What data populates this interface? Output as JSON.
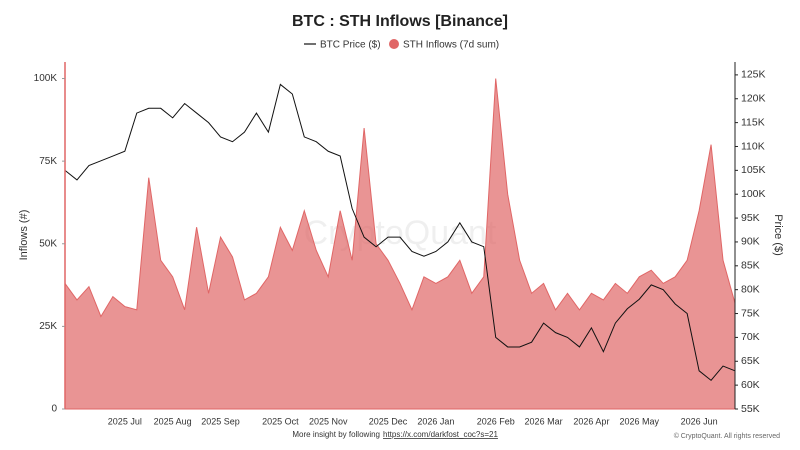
{
  "chart_data": {
    "type": "line",
    "title": "BTC : STH Inflows [Binance]",
    "y_label": "Inflows (#)",
    "y2_label": "Price ($)",
    "watermark": "CryptoQuant",
    "note": "More insight by following",
    "link": "https://x.com/darkfost_coc?s=21",
    "credit": "© CryptoQuant. All rights reserved",
    "categories": [
      null,
      null,
      null,
      null,
      null,
      "2025 Jul",
      null,
      null,
      null,
      "2025 Aug",
      null,
      null,
      null,
      "2025 Sep",
      null,
      null,
      null,
      null,
      "2025 Oct",
      null,
      null,
      null,
      "2025 Nov",
      null,
      null,
      null,
      null,
      "2025 Dec",
      null,
      null,
      null,
      "2026 Jan",
      null,
      null,
      null,
      null,
      "2026 Feb",
      null,
      null,
      null,
      "2026 Mar",
      null,
      null,
      null,
      "2026 Apr",
      null,
      null,
      null,
      "2026 May",
      null,
      null,
      null,
      null,
      "2026 Jun",
      null,
      null,
      null
    ],
    "series": [
      {
        "name": "STH Inflows (7d sum)",
        "type": "area",
        "color": "#e06666",
        "values": [
          38000,
          33000,
          37000,
          28000,
          34000,
          31000,
          30000,
          70000,
          45000,
          40000,
          30000,
          55000,
          35000,
          52000,
          46000,
          33000,
          35000,
          40000,
          55000,
          48000,
          60000,
          48000,
          40000,
          60000,
          45000,
          85000,
          50000,
          45000,
          38000,
          30000,
          40000,
          38000,
          40000,
          45000,
          35000,
          40000,
          100000,
          65000,
          45000,
          35000,
          38000,
          30000,
          35000,
          30000,
          35000,
          33000,
          38000,
          35000,
          40000,
          42000,
          38000,
          40000,
          45000,
          60000,
          80000,
          45000,
          32000
        ]
      },
      {
        "name": "BTC Price ($)",
        "type": "line",
        "axis": "y2",
        "color": "#111111",
        "values": [
          105000,
          103000,
          106000,
          107000,
          108000,
          109000,
          117000,
          118000,
          118000,
          116000,
          119000,
          117000,
          115000,
          112000,
          111000,
          113000,
          117000,
          113000,
          123000,
          121000,
          112000,
          111000,
          109000,
          108000,
          97000,
          91000,
          89000,
          91000,
          91000,
          88000,
          87000,
          88000,
          90000,
          94000,
          90000,
          89000,
          70000,
          68000,
          68000,
          69000,
          73000,
          71000,
          70000,
          68000,
          72000,
          67000,
          73000,
          76000,
          78000,
          81000,
          80000,
          77000,
          75000,
          63000,
          61000,
          64000,
          63000
        ]
      }
    ],
    "ylim": [
      0,
      105000
    ],
    "yticks": [
      0,
      {
        "value": 25000,
        "label": "25K"
      },
      {
        "value": 50000,
        "label": "50K"
      },
      {
        "value": 75000,
        "label": "75K"
      },
      {
        "value": 100000,
        "label": "100K"
      }
    ],
    "y2lim": [
      55000,
      127700
    ],
    "y2ticks": [
      {
        "value": 55000,
        "label": "55K"
      },
      {
        "value": 60000,
        "label": "60K"
      },
      {
        "value": 65000,
        "label": "65K"
      },
      {
        "value": 70000,
        "label": "70K"
      },
      {
        "value": 75000,
        "label": "75K"
      },
      {
        "value": 80000,
        "label": "80K"
      },
      {
        "value": 85000,
        "label": "85K"
      },
      {
        "value": 90000,
        "label": "90K"
      },
      {
        "value": 95000,
        "label": "95K"
      },
      {
        "value": 100000,
        "label": "100K"
      },
      {
        "value": 105000,
        "label": "105K"
      },
      {
        "value": 110000,
        "label": "110K"
      },
      {
        "value": 115000,
        "label": "115K"
      },
      {
        "value": 120000,
        "label": "120K"
      },
      {
        "value": 125000,
        "label": "125K"
      }
    ],
    "grid": false
  }
}
